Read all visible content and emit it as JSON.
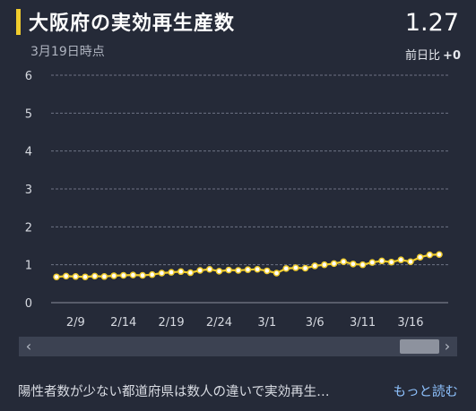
{
  "header": {
    "title": "大阪府の実効再生産数",
    "date": "3月19日時点",
    "current_value": "1.27",
    "diff_label": "前日比",
    "diff_value": "+0"
  },
  "footer": {
    "note": "陽性者数が少ない都道府県は数人の違いで実効再生…",
    "more_link": "もっと読む"
  },
  "scrollbar": {
    "left_arrow": "‹",
    "right_arrow": "›"
  },
  "colors": {
    "line": "#f0cc2d",
    "background": "#252a38",
    "accent": "#f0cc2d"
  },
  "chart_data": {
    "type": "line",
    "title": "大阪府の実効再生産数",
    "ylim": [
      0,
      6
    ],
    "yticks": [
      0,
      1,
      2,
      3,
      4,
      5,
      6
    ],
    "grid": true,
    "xticks": [
      "2/9",
      "2/14",
      "2/19",
      "2/24",
      "3/1",
      "3/6",
      "3/11",
      "3/16"
    ],
    "x": [
      "2/7",
      "2/8",
      "2/9",
      "2/10",
      "2/11",
      "2/12",
      "2/13",
      "2/14",
      "2/15",
      "2/16",
      "2/17",
      "2/18",
      "2/19",
      "2/20",
      "2/21",
      "2/22",
      "2/23",
      "2/24",
      "2/25",
      "2/26",
      "2/27",
      "2/28",
      "3/1",
      "3/2",
      "3/3",
      "3/4",
      "3/5",
      "3/6",
      "3/7",
      "3/8",
      "3/9",
      "3/10",
      "3/11",
      "3/12",
      "3/13",
      "3/14",
      "3/15",
      "3/16",
      "3/17",
      "3/18",
      "3/19"
    ],
    "series": [
      {
        "values": [
          0.68,
          0.7,
          0.69,
          0.68,
          0.7,
          0.69,
          0.71,
          0.72,
          0.73,
          0.72,
          0.74,
          0.78,
          0.8,
          0.82,
          0.79,
          0.85,
          0.88,
          0.83,
          0.86,
          0.85,
          0.87,
          0.88,
          0.84,
          0.78,
          0.9,
          0.92,
          0.91,
          0.97,
          1.0,
          1.03,
          1.08,
          1.02,
          1.0,
          1.06,
          1.1,
          1.07,
          1.13,
          1.08,
          1.2,
          1.26,
          1.27
        ]
      }
    ]
  }
}
